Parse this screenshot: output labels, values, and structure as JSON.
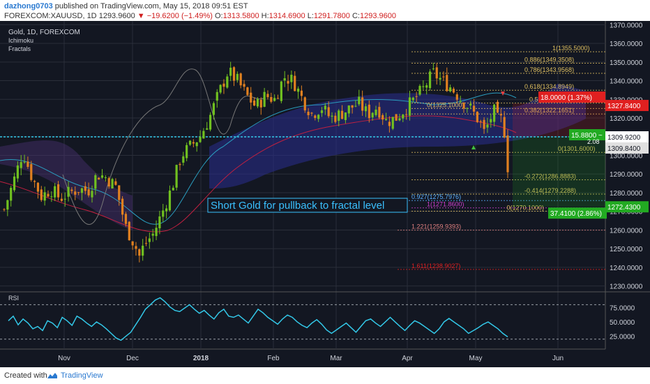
{
  "header": {
    "author": "dazhong0703",
    "published": "published on TradingView.com, May 15, 2018 09:51 EST",
    "symbol": "FOREXCOM:XAUUSD, 1D",
    "last": "1293.9600",
    "change": "−19.6200 (−1.49%)",
    "open_label": "O:",
    "open": "1313.5800",
    "high_label": "H:",
    "high": "1314.6900",
    "low_label": "L:",
    "low": "1291.7800",
    "close_label": "C:",
    "close": "1293.9600"
  },
  "legend": {
    "title": "Gold, 1D, FOREXCOM",
    "indicators": [
      "Ichimoku",
      "Fractals"
    ]
  },
  "annotation": "Short Gold for pullback to fractal level",
  "footer": {
    "created": "Created with",
    "brand": "TradingView"
  },
  "colors": {
    "background": "#131722",
    "grid": "#2a2e39",
    "up": "#70c020",
    "down": "#e08020",
    "rsi": "#33c8e8",
    "dotted_line": "#33c8e8",
    "red_tag": "#e02020",
    "green_tag": "#22aa22"
  },
  "chart_data": {
    "type": "candlestick",
    "price_axis": {
      "ticks": [
        "1230.0000",
        "1240.0000",
        "1250.0000",
        "1260.0000",
        "1270.0000",
        "1280.0000",
        "1290.0000",
        "1300.0000",
        "1310.0000",
        "1320.0000",
        "1330.0000",
        "1340.0000",
        "1350.0000",
        "1360.0000",
        "1370.0000"
      ],
      "range": [
        1228,
        1372
      ]
    },
    "time_axis": {
      "labels": [
        "Nov",
        "Dec",
        "2018",
        "Feb",
        "Mar",
        "Apr",
        "May",
        "Jun"
      ],
      "bold": [
        "2018"
      ]
    },
    "candle_count": 150,
    "close_path": [
      [
        0,
        1271
      ],
      [
        4,
        1286
      ],
      [
        8,
        1302
      ],
      [
        12,
        1288
      ],
      [
        16,
        1278
      ],
      [
        20,
        1282
      ],
      [
        24,
        1277
      ],
      [
        28,
        1280
      ],
      [
        32,
        1282
      ],
      [
        36,
        1281
      ],
      [
        40,
        1290
      ],
      [
        44,
        1288
      ],
      [
        48,
        1283
      ],
      [
        52,
        1262
      ],
      [
        56,
        1252
      ],
      [
        58,
        1246
      ],
      [
        60,
        1252
      ],
      [
        64,
        1258
      ],
      [
        68,
        1270
      ],
      [
        72,
        1283
      ],
      [
        76,
        1300
      ],
      [
        80,
        1305
      ],
      [
        84,
        1310
      ],
      [
        88,
        1320
      ],
      [
        92,
        1333
      ],
      [
        96,
        1345
      ],
      [
        100,
        1340
      ],
      [
        104,
        1332
      ],
      [
        108,
        1326
      ],
      [
        112,
        1332
      ],
      [
        116,
        1330
      ],
      [
        120,
        1342
      ],
      [
        124,
        1340
      ],
      [
        128,
        1330
      ],
      [
        132,
        1322
      ],
      [
        136,
        1326
      ],
      [
        140,
        1320
      ],
      [
        144,
        1322
      ],
      [
        148,
        1325
      ],
      [
        152,
        1328
      ],
      [
        156,
        1322
      ],
      [
        160,
        1326
      ],
      [
        164,
        1318
      ],
      [
        168,
        1320
      ],
      [
        172,
        1325
      ],
      [
        176,
        1330
      ],
      [
        180,
        1336
      ],
      [
        184,
        1344
      ],
      [
        188,
        1340
      ],
      [
        192,
        1336
      ],
      [
        196,
        1330
      ],
      [
        200,
        1325
      ],
      [
        204,
        1318
      ],
      [
        206,
        1312
      ],
      [
        208,
        1318
      ],
      [
        210,
        1324
      ],
      [
        212,
        1318
      ],
      [
        214,
        1320
      ],
      [
        216,
        1294
      ]
    ],
    "fib_levels": [
      {
        "label": "1(1355.5000)",
        "price": 1355.5,
        "color": "#e0c060"
      },
      {
        "label": "0.886(1349.3508)",
        "price": 1349.3508,
        "color": "#e0c060"
      },
      {
        "label": "0.786(1343.9568)",
        "price": 1343.9568,
        "color": "#e0c060"
      },
      {
        "label": "0.618(1334.8949)",
        "price": 1334.8949,
        "color": "#e0c060"
      },
      {
        "label": "0.5(1328.0000)",
        "price": 1328.0,
        "color": "#e0c060"
      },
      {
        "label": "0(1325.1000)",
        "price": 1325.1,
        "color": "#e0c060"
      },
      {
        "label": "0.382(1322.1651)",
        "price": 1322.1651,
        "color": "#e0c060"
      },
      {
        "label": "0(1301.6000)",
        "price": 1301.6,
        "color": "#e0c060"
      },
      {
        "label": "-0.272(1286.8883)",
        "price": 1286.8883,
        "color": "#e0c060"
      },
      {
        "label": "-0.414(1279.2288)",
        "price": 1279.2288,
        "color": "#e0c060"
      },
      {
        "label": "0.927(1275.7976)",
        "price": 1275.7976,
        "color": "#5ab0ff"
      },
      {
        "label": "1(1271.8600)",
        "price": 1271.86,
        "color": "#d040d0"
      },
      {
        "label": "0(1270.1000)",
        "price": 1270.1,
        "color": "#e0c060"
      },
      {
        "label": "1.221(1259.9393)",
        "price": 1259.9393,
        "color": "#e08080"
      },
      {
        "label": "1.611(1238.9027)",
        "price": 1238.9027,
        "color": "#e02020"
      }
    ],
    "position": {
      "entry": 1309.92,
      "stop_tag": "18.0000 (1.37%)",
      "stop_price_tag": "1327.8400",
      "target_tag": "37.4100 (2.86%)",
      "target_price_tag": "1272.4300",
      "current_tag": "15.8800 ~",
      "current_sub": "2.08",
      "entry_price_tag": "1309.9200",
      "last_price_tag": "1309.8400"
    },
    "rsi": {
      "label": "RSI",
      "ticks": [
        "25.0000",
        "50.0000",
        "75.0000"
      ],
      "levels": [
        20,
        80
      ],
      "values": [
        52,
        60,
        45,
        55,
        48,
        38,
        42,
        35,
        52,
        48,
        40,
        58,
        52,
        44,
        60,
        55,
        48,
        42,
        50,
        45,
        38,
        30,
        22,
        18,
        25,
        32,
        45,
        58,
        72,
        80,
        88,
        92,
        85,
        76,
        70,
        68,
        74,
        80,
        72,
        65,
        70,
        62,
        55,
        66,
        72,
        60,
        58,
        62,
        55,
        48,
        60,
        72,
        66,
        58,
        52,
        46,
        55,
        62,
        58,
        50,
        44,
        40,
        48,
        54,
        46,
        36,
        30,
        36,
        42,
        48,
        40,
        32,
        42,
        52,
        55,
        48,
        42,
        50,
        58,
        50,
        42,
        35,
        44,
        52,
        48,
        42,
        36,
        30,
        38,
        50,
        56,
        50,
        44,
        38,
        30,
        35,
        40,
        46,
        50,
        44,
        38,
        30,
        24
      ]
    }
  }
}
